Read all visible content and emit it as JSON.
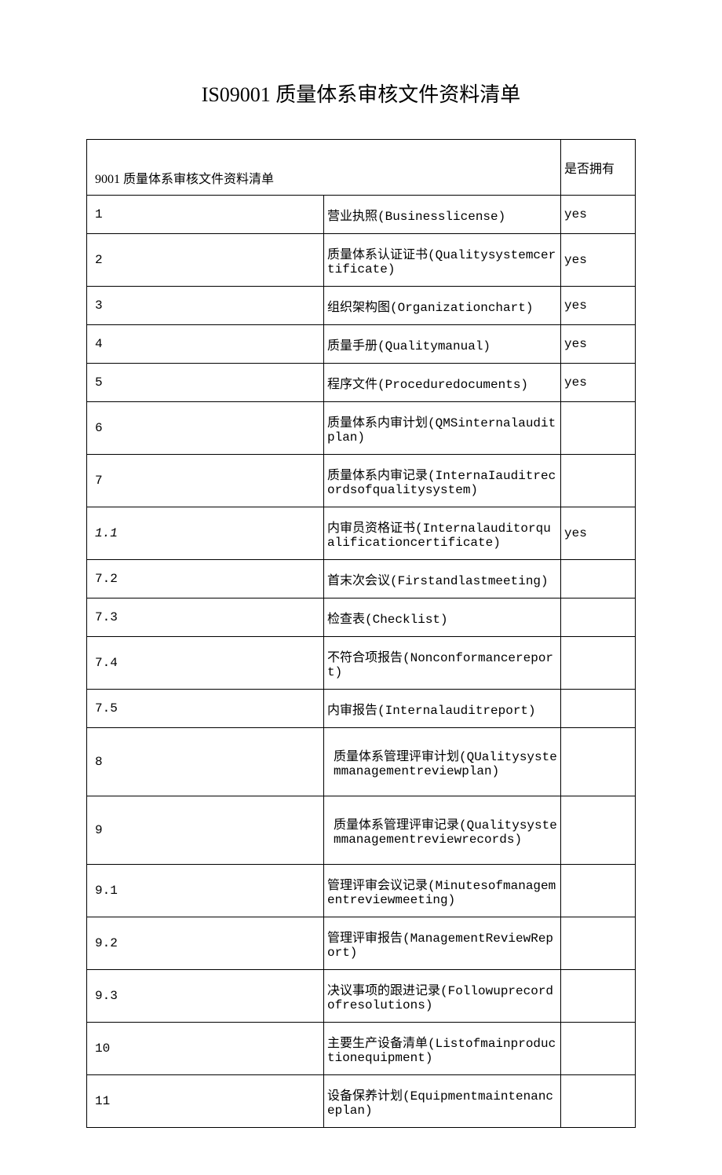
{
  "title": "IS09001 质量体系审核文件资料清单",
  "header": {
    "left": "9001 质量体系审核文件资料清单",
    "right": "是否拥有"
  },
  "rows": [
    {
      "num": "1",
      "desc": "营业执照(Businesslicense)",
      "own": "yes"
    },
    {
      "num": "2",
      "desc": "质量体系认证证书(Qualitysystemcertificate)",
      "own": "yes"
    },
    {
      "num": "3",
      "desc": "组织架构图(Organizationchart)",
      "own": "yes"
    },
    {
      "num": "4",
      "desc": "质量手册(Qualitymanual)",
      "own": "yes"
    },
    {
      "num": "5",
      "desc": "程序文件(Proceduredocuments)",
      "own": "yes"
    },
    {
      "num": "6",
      "desc": "质量体系内审计划(QMSinternalauditplan)",
      "own": ""
    },
    {
      "num": "7",
      "desc": "质量体系内审记录(InternaIauditrecordsofqualitysystem)",
      "own": ""
    },
    {
      "num": "1.1",
      "desc": "内审员资格证书(Internalauditorqualificationcertificate)",
      "own": "yes",
      "italicNum": true
    },
    {
      "num": "7.2",
      "desc": "首末次会议(Firstandlastmeeting)",
      "own": ""
    },
    {
      "num": "7.3",
      "desc": "检查表(Checklist)",
      "own": ""
    },
    {
      "num": "7.4",
      "desc": "不符合项报告(Nonconformancereport)",
      "own": ""
    },
    {
      "num": "7.5",
      "desc": "内审报告(Internalauditreport)",
      "own": ""
    },
    {
      "num": "8",
      "desc": "质量体系管理评审计划(QUalitysystemmanagementreviewplan)",
      "own": "",
      "tall": true,
      "indent": true
    },
    {
      "num": "9",
      "desc": "质量体系管理评审记录(Qualitysystemmanagementreviewrecords)",
      "own": "",
      "tall": true,
      "indent": true
    },
    {
      "num": "9.1",
      "desc": "管理评审会议记录(Minutesofmanagementreviewmeeting)",
      "own": ""
    },
    {
      "num": "9.2",
      "desc": "管理评审报告(ManagementReviewReport)",
      "own": ""
    },
    {
      "num": "9.3",
      "desc": "决议事项的跟进记录(Followuprecordofresolutions)",
      "own": ""
    },
    {
      "num": "10",
      "desc": "主要生产设备清单(Listofmainproductionequipment)",
      "own": ""
    },
    {
      "num": "11",
      "desc": "设备保养计划(Equipmentmaintenanceplan)",
      "own": ""
    }
  ]
}
